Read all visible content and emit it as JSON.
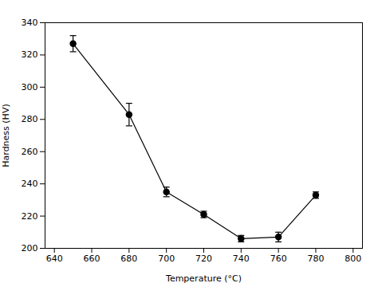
{
  "chart_data": {
    "type": "line",
    "x": [
      650,
      680,
      700,
      720,
      740,
      760,
      780
    ],
    "values": [
      327,
      283,
      235,
      221,
      206,
      207,
      233
    ],
    "yerr": [
      5,
      7,
      3,
      2,
      2,
      3,
      2
    ],
    "xlabel": "Temperature (°C)",
    "ylabel": "Hardness (HV)",
    "xlim": [
      635,
      805
    ],
    "ylim": [
      200,
      340
    ],
    "xticks": [
      640,
      660,
      680,
      700,
      720,
      740,
      760,
      780,
      800
    ],
    "yticks": [
      200,
      220,
      240,
      260,
      280,
      300,
      320,
      340
    ],
    "color": "black",
    "marker": "circle",
    "line_style": "solid",
    "grid": false
  }
}
